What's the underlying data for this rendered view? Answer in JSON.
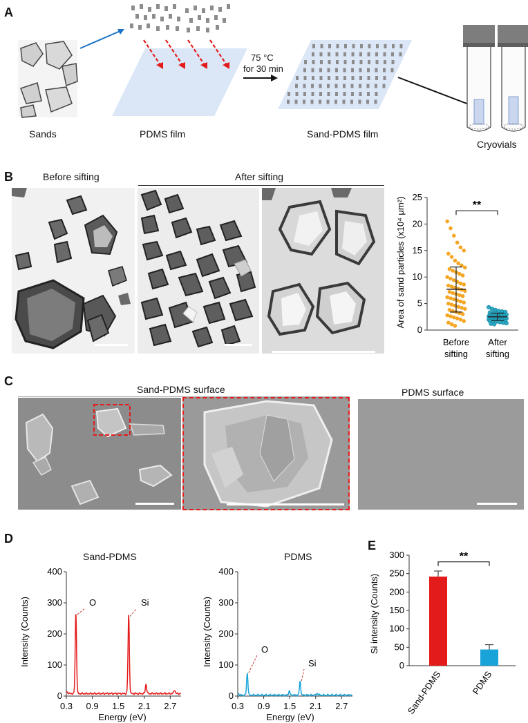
{
  "panels": {
    "a": "A",
    "b": "B",
    "c": "C",
    "d": "D",
    "e": "E"
  },
  "panel_a": {
    "sands": "Sands",
    "pdms_film": "PDMS film",
    "condition_line1": "75 °C",
    "condition_line2": "for 30 min",
    "sand_pdms_film": "Sand-PDMS film",
    "cryovials": "Cryovials"
  },
  "panel_b": {
    "before_sifting": "Before sifting",
    "after_sifting": "After sifting"
  },
  "panel_c": {
    "sand_pdms_surface": "Sand-PDMS surface",
    "pdms_surface": "PDMS surface"
  },
  "panel_d": {
    "left_title": "Sand-PDMS",
    "right_title": "PDMS",
    "peak_o": "O",
    "peak_si": "Si"
  },
  "colors": {
    "red": "#e41b1b",
    "blue": "#1aa3d9",
    "orange": "#f5a623",
    "teal": "#2aa9c4",
    "film": "#dbe6f7",
    "arrow_blue": "#1b73c4"
  },
  "chart_data": [
    {
      "id": "B-scatter",
      "type": "scatter",
      "ylabel": "Area of sand particles (x10⁴ μm²)",
      "categories": [
        "Before\nsifting",
        "After\nsifting"
      ],
      "category_line1": [
        "Before",
        "After"
      ],
      "category_line2": [
        "sifting",
        "sifting"
      ],
      "ylim": [
        0,
        25
      ],
      "yticks": [
        0,
        5,
        10,
        15,
        20,
        25
      ],
      "significance": "**",
      "series": [
        {
          "values_summary": {
            "mean": 7.7,
            "sd_low": 3.4,
            "sd_high": 11.9
          },
          "points": [
            20.5,
            19.2,
            17.8,
            16.5,
            15.6,
            15.0,
            14.4,
            13.8,
            13.1,
            12.6,
            12.2,
            11.8,
            11.5,
            11.2,
            10.9,
            10.6,
            10.3,
            10.0,
            9.7,
            9.4,
            9.1,
            8.8,
            8.6,
            8.4,
            8.2,
            8.0,
            7.8,
            7.6,
            7.4,
            7.2,
            7.0,
            6.8,
            6.6,
            6.4,
            6.2,
            6.0,
            5.8,
            5.6,
            5.4,
            5.2,
            5.0,
            4.8,
            4.6,
            4.4,
            4.2,
            4.0,
            3.8,
            3.6,
            3.4,
            3.2,
            3.0,
            2.8,
            2.6,
            2.4,
            2.2,
            2.0,
            1.7,
            1.4,
            1.1,
            0.8
          ]
        },
        {
          "values_summary": {
            "mean": 2.5,
            "sd_low": 1.8,
            "sd_high": 3.2
          },
          "points": [
            4.3,
            4.0,
            3.8,
            3.6,
            3.5,
            3.4,
            3.3,
            3.2,
            3.1,
            3.0,
            3.0,
            2.9,
            2.9,
            2.8,
            2.8,
            2.7,
            2.7,
            2.6,
            2.6,
            2.5,
            2.5,
            2.5,
            2.4,
            2.4,
            2.4,
            2.3,
            2.3,
            2.2,
            2.2,
            2.2,
            2.1,
            2.1,
            2.0,
            2.0,
            2.0,
            1.9,
            1.9,
            1.8,
            1.8,
            1.7,
            1.7,
            1.6,
            1.6,
            1.5,
            1.4,
            1.3,
            1.2,
            1.1
          ]
        }
      ]
    },
    {
      "id": "D-sand-pdms",
      "type": "line",
      "xlabel": "Energy (eV)",
      "ylabel": "Intensity (Counts)",
      "xlim": [
        0.3,
        2.95
      ],
      "ylim": [
        0,
        400
      ],
      "xticks": [
        "0.3",
        "0.9",
        "1.5",
        "2.1",
        "2.7"
      ],
      "yticks": [
        0,
        100,
        200,
        300,
        400
      ],
      "peaks": [
        {
          "x": 0.52,
          "y": 258,
          "label": "O"
        },
        {
          "x": 1.74,
          "y": 252,
          "label": "Si"
        },
        {
          "x": 2.14,
          "y": 30,
          "label": ""
        },
        {
          "x": 2.8,
          "y": 12,
          "label": ""
        }
      ],
      "baseline": 8
    },
    {
      "id": "D-pdms",
      "type": "line",
      "xlabel": "Energy (eV)",
      "ylabel": "Intensity (Counts)",
      "xlim": [
        0.3,
        2.95
      ],
      "ylim": [
        0,
        400
      ],
      "xticks": [
        "0.3",
        "0.9",
        "1.5",
        "2.1",
        "2.7"
      ],
      "yticks": [
        0,
        100,
        200,
        300,
        400
      ],
      "peaks": [
        {
          "x": 0.52,
          "y": 70,
          "label": "O"
        },
        {
          "x": 1.49,
          "y": 14,
          "label": ""
        },
        {
          "x": 1.74,
          "y": 44,
          "label": "Si"
        },
        {
          "x": 2.14,
          "y": 6,
          "label": ""
        }
      ],
      "baseline": 3
    },
    {
      "id": "E-bar",
      "type": "bar",
      "ylabel": "Si intensity (Counts)",
      "categories": [
        "Sand-PDMS",
        "PDMS"
      ],
      "values": [
        242,
        44
      ],
      "errors": [
        15,
        13
      ],
      "ylim": [
        0,
        300
      ],
      "yticks": [
        0,
        50,
        100,
        150,
        200,
        250,
        300
      ],
      "significance": "**"
    }
  ]
}
